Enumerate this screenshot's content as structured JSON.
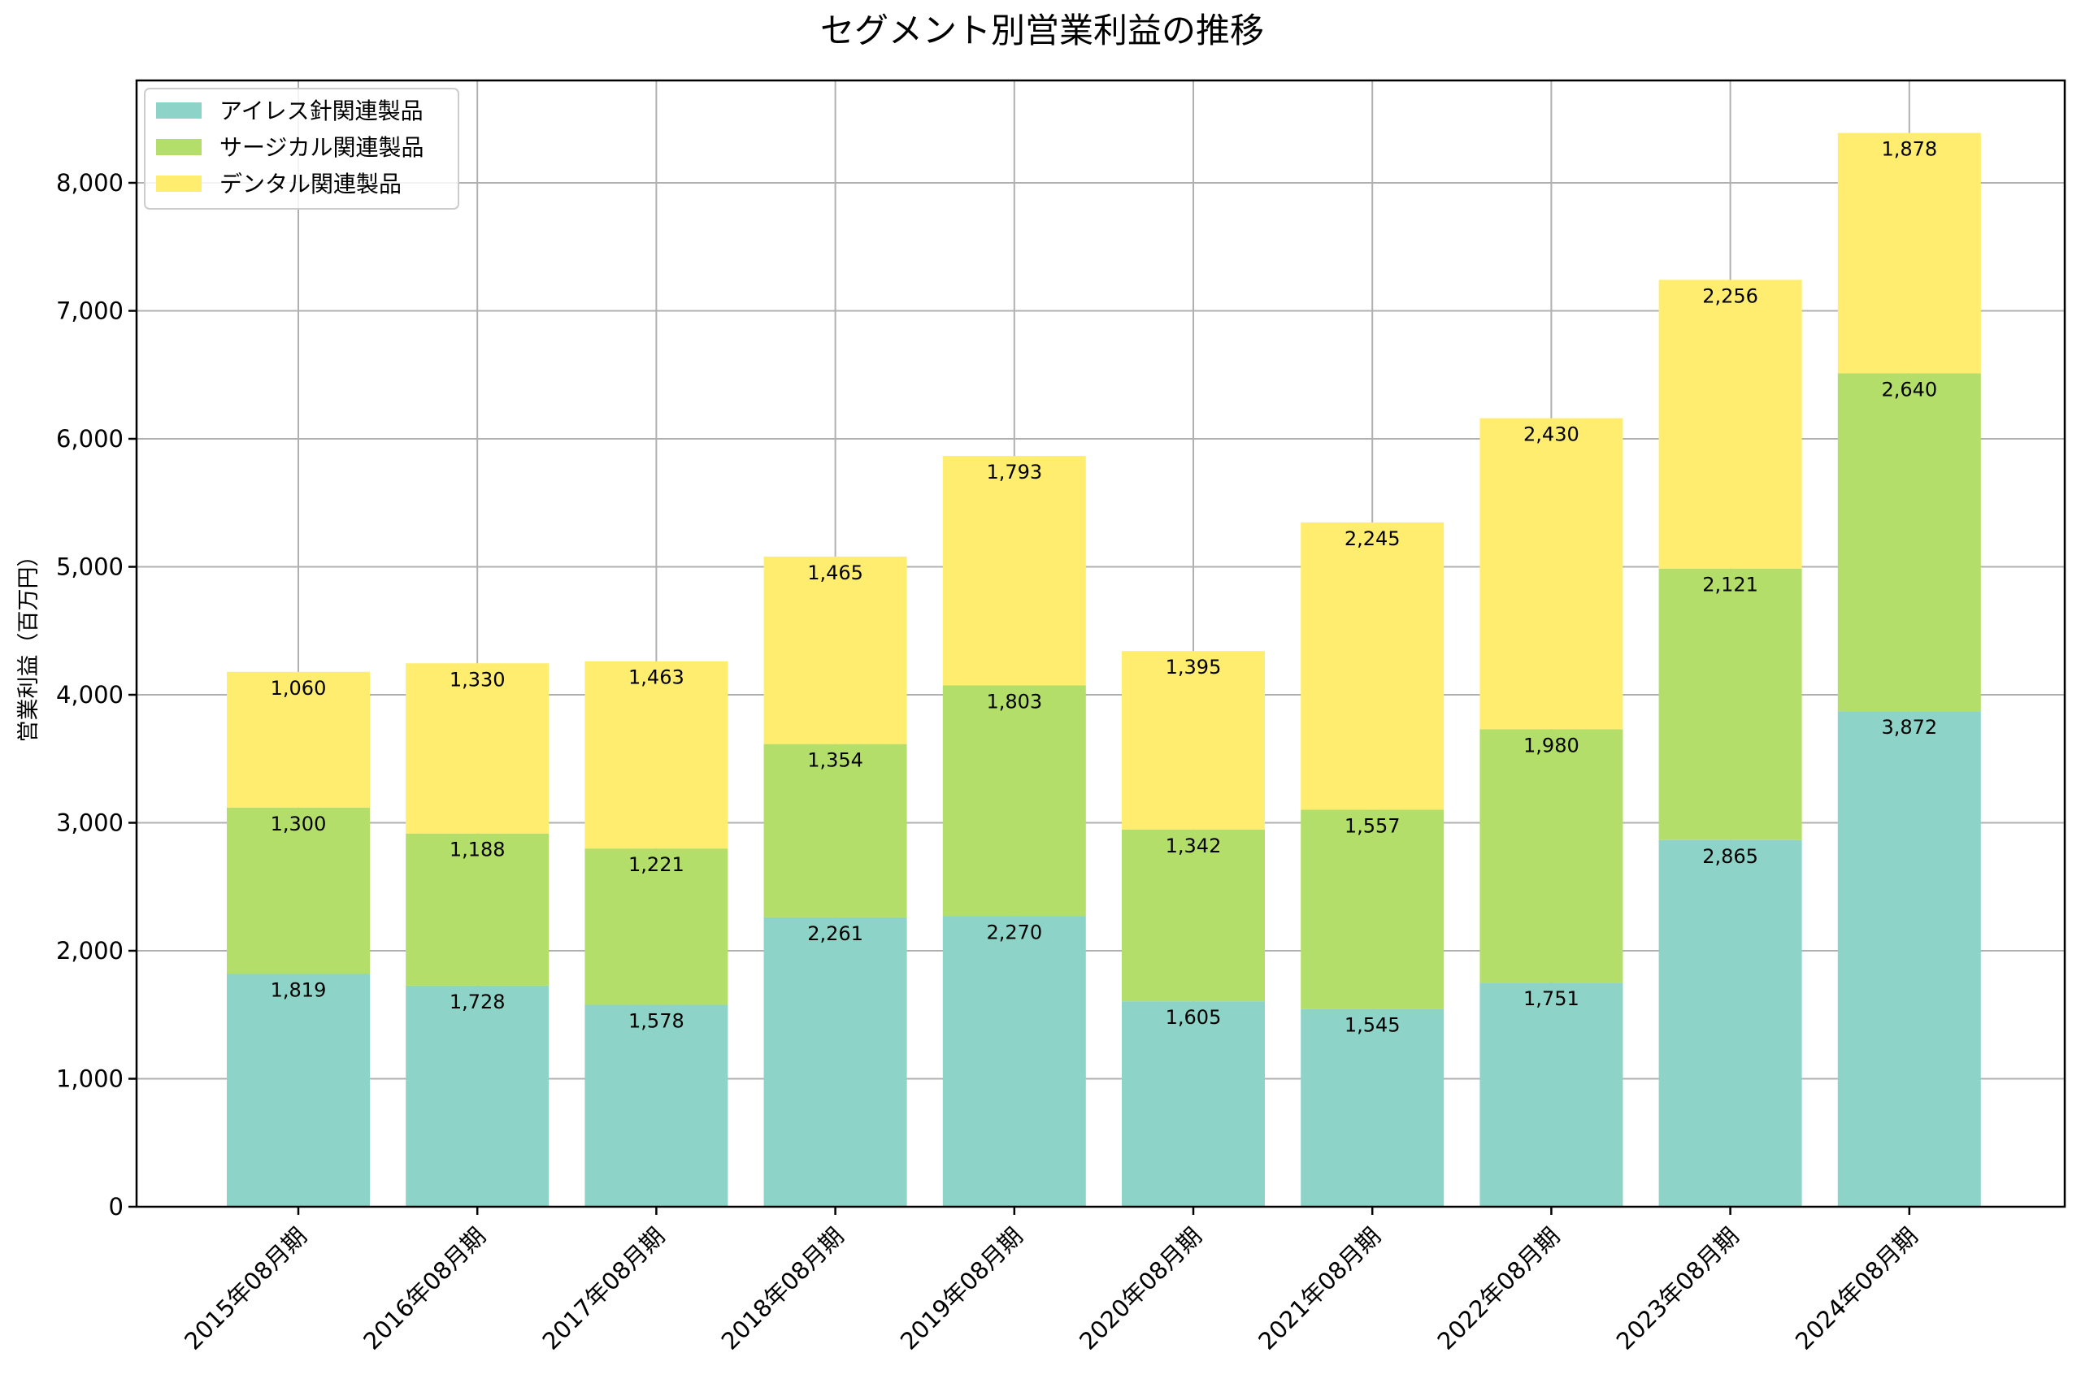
{
  "chart_data": {
    "type": "bar",
    "stacked": true,
    "title": "セグメント別営業利益の推移",
    "xlabel": "",
    "ylabel": "営業利益（百万円）",
    "ylim": [
      0,
      8800
    ],
    "yticks": [
      0,
      1000,
      2000,
      3000,
      4000,
      5000,
      6000,
      7000,
      8000
    ],
    "ytick_labels": [
      "0",
      "1,000",
      "2,000",
      "3,000",
      "4,000",
      "5,000",
      "6,000",
      "7,000",
      "8,000"
    ],
    "grid": true,
    "legend_position": "top-left",
    "categories": [
      "2015年08月期",
      "2016年08月期",
      "2017年08月期",
      "2018年08月期",
      "2019年08月期",
      "2020年08月期",
      "2021年08月期",
      "2022年08月期",
      "2023年08月期",
      "2024年08月期"
    ],
    "series": [
      {
        "name": "アイレス針関連製品",
        "color": "#8dd3c7",
        "values": [
          1819,
          1728,
          1578,
          2261,
          2270,
          1605,
          1545,
          1751,
          2865,
          3872
        ],
        "labels": [
          "1,819",
          "1,728",
          "1,578",
          "2,261",
          "2,270",
          "1,605",
          "1,545",
          "1,751",
          "2,865",
          "3,872"
        ]
      },
      {
        "name": "サージカル関連製品",
        "color": "#b3de69",
        "values": [
          1300,
          1188,
          1221,
          1354,
          1803,
          1342,
          1557,
          1980,
          2121,
          2640
        ],
        "labels": [
          "1,300",
          "1,188",
          "1,221",
          "1,354",
          "1,803",
          "1,342",
          "1,557",
          "1,980",
          "2,121",
          "2,640"
        ]
      },
      {
        "name": "デンタル関連製品",
        "color": "#ffed6f",
        "values": [
          1060,
          1330,
          1463,
          1465,
          1793,
          1395,
          2245,
          2430,
          2256,
          1878
        ],
        "labels": [
          "1,060",
          "1,330",
          "1,463",
          "1,465",
          "1,793",
          "1,395",
          "2,245",
          "2,430",
          "2,256",
          "1,878"
        ]
      }
    ]
  }
}
